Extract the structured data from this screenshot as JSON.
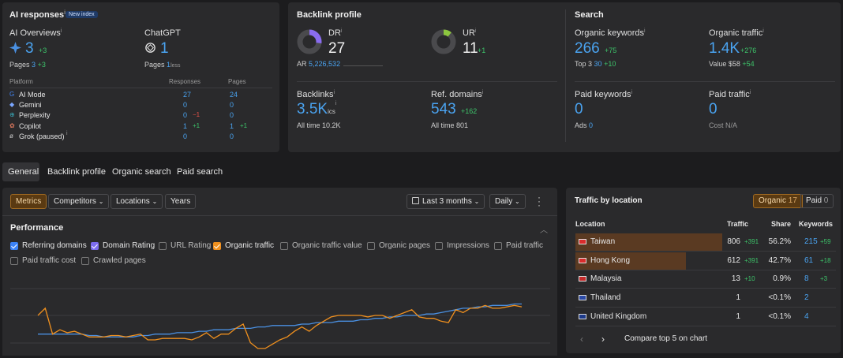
{
  "ai": {
    "title": "AI responses",
    "badge": "New index",
    "overviews_label": "AI Overviews",
    "overviews_value": "3",
    "overviews_delta": "+3",
    "overviews_pages_label": "Pages",
    "overviews_pages": "3",
    "overviews_pages_delta": "+3",
    "chatgpt_label": "ChatGPT",
    "chatgpt_value": "1",
    "chatgpt_pages_label": "Pages",
    "chatgpt_pages": "1",
    "chatgpt_pages_suffix": "less",
    "col_platform": "Platform",
    "col_responses": "Responses",
    "col_pages": "Pages",
    "platforms": [
      {
        "name": "AI Mode",
        "responses": "27",
        "resp_delta": "",
        "pages": "24",
        "pages_delta": ""
      },
      {
        "name": "Gemini",
        "responses": "0",
        "resp_delta": "",
        "pages": "0",
        "pages_delta": ""
      },
      {
        "name": "Perplexity",
        "responses": "0",
        "resp_delta": "−1",
        "pages": "0",
        "pages_delta": ""
      },
      {
        "name": "Copilot",
        "responses": "1",
        "resp_delta": "+1",
        "pages": "1",
        "pages_delta": "+1"
      },
      {
        "name": "Grok (paused)",
        "responses": "0",
        "resp_delta": "",
        "pages": "0",
        "pages_delta": ""
      }
    ]
  },
  "backlink": {
    "title": "Backlink profile",
    "dr_label": "DR",
    "dr_value": "27",
    "dr_fraction": 0.27,
    "ar_label": "AR",
    "ar_value": "5,226,532",
    "ur_label": "UR",
    "ur_value": "11",
    "ur_delta": "+1",
    "ur_fraction": 0.11,
    "backlinks_label": "Backlinks",
    "backlinks_value": "3.5K",
    "backlinks_suffix": "ics",
    "alltime_label": "All time",
    "backlinks_alltime": "10.2K",
    "refdomains_label": "Ref. domains",
    "refdomains_value": "543",
    "refdomains_delta": "+162",
    "refdomains_alltime": "801"
  },
  "search": {
    "title": "Search",
    "org_kw_label": "Organic keywords",
    "org_kw_value": "266",
    "org_kw_delta": "+75",
    "top3_label": "Top 3",
    "top3_value": "30",
    "top3_delta": "+10",
    "org_traffic_label": "Organic traffic",
    "org_traffic_value": "1.4K",
    "org_traffic_delta": "+276",
    "value_label": "Value",
    "value_value": "$58",
    "value_delta": "+54",
    "paid_kw_label": "Paid keywords",
    "paid_kw_value": "0",
    "ads_label": "Ads",
    "ads_value": "0",
    "paid_traffic_label": "Paid traffic",
    "paid_traffic_value": "0",
    "cost_label": "Cost",
    "cost_value": "N/A"
  },
  "tabs": [
    "General",
    "Backlink profile",
    "Organic search",
    "Paid search"
  ],
  "toolbar": {
    "metrics": "Metrics",
    "competitors": "Competitors",
    "locations": "Locations",
    "years": "Years",
    "range": "Last 3 months",
    "granularity": "Daily"
  },
  "performance": {
    "title": "Performance",
    "checks": [
      {
        "label": "Referring domains",
        "on": true,
        "color": "#3b82f6"
      },
      {
        "label": "Domain Rating",
        "on": true,
        "color": "#7c6cf0"
      },
      {
        "label": "URL Rating",
        "on": false,
        "color": ""
      },
      {
        "label": "Organic traffic",
        "on": true,
        "color": "#f0901e"
      },
      {
        "label": "Organic traffic value",
        "on": false,
        "color": ""
      },
      {
        "label": "Organic pages",
        "on": false,
        "color": ""
      },
      {
        "label": "Impressions",
        "on": false,
        "color": ""
      },
      {
        "label": "Paid traffic",
        "on": false,
        "color": ""
      },
      {
        "label": "Paid traffic cost",
        "on": false,
        "color": ""
      },
      {
        "label": "Crawled pages",
        "on": false,
        "color": ""
      }
    ]
  },
  "chart_data": {
    "type": "line",
    "series": [
      {
        "color": "#4a90e2",
        "values": [
          40,
          40,
          40,
          40,
          40,
          40,
          40,
          39,
          39,
          38,
          38,
          38,
          38,
          38,
          39,
          39,
          40,
          40,
          40,
          41,
          41,
          41,
          42,
          42,
          43,
          43,
          43,
          44,
          44,
          44,
          45,
          45,
          46,
          46,
          46,
          46,
          47,
          47,
          48,
          48,
          48,
          49,
          49,
          49,
          50,
          50,
          51,
          51,
          52,
          52,
          53,
          53,
          53,
          54,
          54,
          55,
          56,
          57,
          58,
          58,
          59,
          59,
          60,
          60,
          60,
          61,
          61
        ]
      },
      {
        "color": "#f0901e",
        "values": [
          53,
          58,
          40,
          43,
          41,
          42,
          40,
          38,
          38,
          38,
          39,
          39,
          38,
          39,
          40,
          36,
          36,
          37,
          37,
          37,
          37,
          36,
          38,
          41,
          37,
          40,
          40,
          44,
          47,
          34,
          30,
          30,
          33,
          36,
          38,
          42,
          45,
          42,
          46,
          49,
          52,
          53,
          53,
          53,
          53,
          52,
          53,
          53,
          51,
          53,
          55,
          57,
          52,
          51,
          51,
          49,
          48,
          57,
          55,
          58,
          58,
          60,
          58,
          58,
          59,
          60,
          59
        ]
      }
    ]
  },
  "traffic": {
    "title": "Traffic by location",
    "organic_label": "Organic",
    "organic_count": "17",
    "paid_label": "Paid",
    "paid_count": "0",
    "col_location": "Location",
    "col_traffic": "Traffic",
    "col_share": "Share",
    "col_keywords": "Keywords",
    "rows": [
      {
        "name": "Taiwan",
        "traffic": "806",
        "traffic_delta": "+391",
        "share": "56.2%",
        "keywords": "215",
        "kw_delta": "+59",
        "share_fraction": 0.562
      },
      {
        "name": "Hong Kong",
        "traffic": "612",
        "traffic_delta": "+391",
        "share": "42.7%",
        "keywords": "61",
        "kw_delta": "+18",
        "share_fraction": 0.427
      },
      {
        "name": "Malaysia",
        "traffic": "13",
        "traffic_delta": "+10",
        "share": "0.9%",
        "keywords": "8",
        "kw_delta": "+3",
        "share_fraction": 0.009
      },
      {
        "name": "Thailand",
        "traffic": "1",
        "traffic_delta": "",
        "share": "<0.1%",
        "keywords": "2",
        "kw_delta": "",
        "share_fraction": 0
      },
      {
        "name": "United Kingdom",
        "traffic": "1",
        "traffic_delta": "",
        "share": "<0.1%",
        "keywords": "4",
        "kw_delta": "",
        "share_fraction": 0
      }
    ],
    "compare_label": "Compare top 5 on chart"
  }
}
